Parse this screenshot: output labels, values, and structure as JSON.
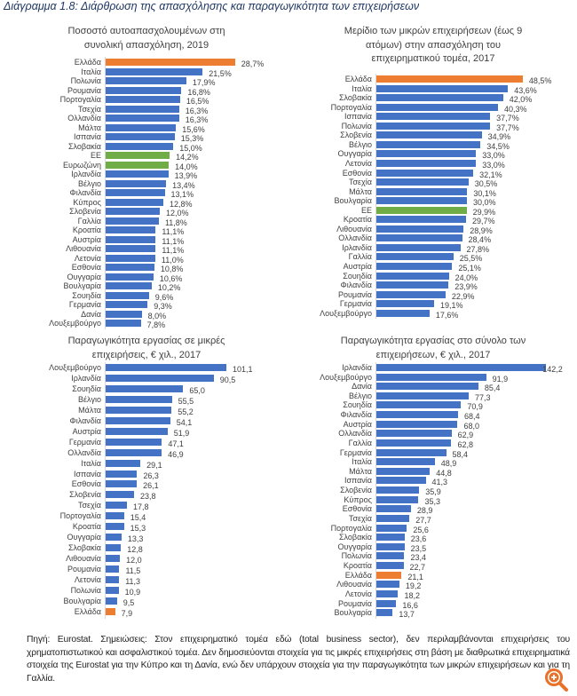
{
  "title": "Διάγραμμα 1.8: Διάρθρωση της απασχόλησης και παραγωγικότητα των επιχειρήσεων",
  "colors": {
    "default": "#4472C4",
    "greece": "#ED7D31",
    "eu": "#70AD47"
  },
  "chart_data": [
    {
      "type": "bar",
      "orientation": "horizontal",
      "title_lines": [
        "Ποσοστό αυτοαπασχολουμένων στη",
        "συνολική απασχόληση, 2019"
      ],
      "value_suffix": "%",
      "categories": [
        "Ελλάδα",
        "Ιταλία",
        "Πολωνία",
        "Ρουμανία",
        "Πορτογαλία",
        "Τσεχία",
        "Ολλανδία",
        "Μάλτα",
        "Ισπανία",
        "Σλοβακία",
        "ΕΕ",
        "Ευρωζώνη",
        "Ιρλανδία",
        "Βέλγιο",
        "Φιλανδία",
        "Κύπρος",
        "Σλοβενία",
        "Γαλλία",
        "Κροατία",
        "Αυστρία",
        "Λιθουανία",
        "Λετονία",
        "Εσθονία",
        "Ουγγαρία",
        "Βουλγαρία",
        "Σουηδία",
        "Γερμανία",
        "Δανία",
        "Λουξεμβούργο"
      ],
      "values": [
        28.7,
        21.5,
        17.9,
        16.8,
        16.5,
        16.3,
        16.3,
        15.6,
        15.3,
        15.0,
        14.2,
        14.0,
        13.9,
        13.4,
        13.1,
        12.8,
        12.0,
        11.8,
        11.1,
        11.1,
        11.1,
        11.0,
        10.8,
        10.6,
        10.2,
        9.6,
        9.3,
        8.0,
        7.8
      ],
      "labels": [
        "28,7%",
        "21,5%",
        "17,9%",
        "16,8%",
        "16,5%",
        "16,3%",
        "16,3%",
        "15,6%",
        "15,3%",
        "15,0%",
        "14,2%",
        "14,0%",
        "13,9%",
        "13,4%",
        "13,1%",
        "12,8%",
        "12,0%",
        "11,8%",
        "11,1%",
        "11,1%",
        "11,1%",
        "11,0%",
        "10,8%",
        "10,6%",
        "10,2%",
        "9,6%",
        "9,3%",
        "8,0%",
        "7,8%"
      ],
      "highlight": {
        "Ελλάδα": "greece",
        "ΕΕ": "eu",
        "Ευρωζώνη": "eu"
      }
    },
    {
      "type": "bar",
      "orientation": "horizontal",
      "title_lines": [
        "Μερίδιο των μικρών επιχειρήσεων (έως 9",
        "ατόμων) στην απασχόληση του",
        "επιχειρηματικού τομέα, 2017"
      ],
      "value_suffix": "%",
      "categories": [
        "Ελλάδα",
        "Ιταλία",
        "Σλοβακία",
        "Πορτογαλία",
        "Ισπανία",
        "Πολωνία",
        "Σλοβενία",
        "Βέλγιο",
        "Ουγγαρία",
        "Λετονία",
        "Εσθονία",
        "Τσεχία",
        "Μάλτα",
        "Βουλγαρία",
        "ΕΕ",
        "Κροατία",
        "Λιθουανία",
        "Ολλανδία",
        "Ιρλανδία",
        "Γαλλία",
        "Αυστρία",
        "Σουηδία",
        "Φιλανδία",
        "Ρουμανία",
        "Γερμανία",
        "Λουξεμβούργο"
      ],
      "values": [
        48.5,
        43.6,
        42.0,
        40.3,
        37.7,
        37.7,
        34.9,
        34.5,
        33.0,
        33.0,
        32.1,
        30.5,
        30.1,
        30.0,
        29.9,
        29.7,
        28.9,
        28.4,
        27.8,
        25.5,
        25.1,
        24.0,
        23.9,
        22.9,
        19.1,
        17.6
      ],
      "labels": [
        "48,5%",
        "43,6%",
        "42,0%",
        "40,3%",
        "37,7%",
        "37,7%",
        "34,9%",
        "34,5%",
        "33,0%",
        "33,0%",
        "32,1%",
        "30,5%",
        "30,1%",
        "30,0%",
        "29,9%",
        "29,7%",
        "28,9%",
        "28,4%",
        "27,8%",
        "25,5%",
        "25,1%",
        "24,0%",
        "23,9%",
        "22,9%",
        "19,1%",
        "17,6%"
      ],
      "highlight": {
        "Ελλάδα": "greece",
        "ΕΕ": "eu"
      }
    },
    {
      "type": "bar",
      "orientation": "horizontal",
      "title_lines": [
        "Παραγωγικότητα εργασίας σε μικρές",
        "επιχειρήσεις, € χιλ., 2017"
      ],
      "categories": [
        "Λουξεμβούργο",
        "Ιρλανδία",
        "Σουηδία",
        "Βέλγιο",
        "Μάλτα",
        "Φιλανδία",
        "Αυστρία",
        "Γερμανία",
        "Ολλανδία",
        "Ιταλία",
        "Ισπανία",
        "Εσθονία",
        "Σλοβενία",
        "Τσεχία",
        "Πορτογαλία",
        "Κροατία",
        "Ουγγαρία",
        "Σλοβακία",
        "Λιθουανία",
        "Ρουμανία",
        "Λετονία",
        "Πολωνία",
        "Βουλγαρία",
        "Ελλάδα"
      ],
      "values": [
        101.1,
        90.5,
        65.0,
        55.5,
        55.2,
        54.1,
        51.9,
        47.1,
        46.9,
        29.1,
        26.3,
        26.1,
        23.8,
        17.8,
        15.4,
        15.3,
        13.3,
        12.8,
        12.0,
        11.5,
        11.3,
        10.9,
        9.5,
        7.9
      ],
      "labels": [
        "101,1",
        "90,5",
        "65,0",
        "55,5",
        "55,2",
        "54,1",
        "51,9",
        "47,1",
        "46,9",
        "29,1",
        "26,3",
        "26,1",
        "23,8",
        "17,8",
        "15,4",
        "15,3",
        "13,3",
        "12,8",
        "12,0",
        "11,5",
        "11,3",
        "10,9",
        "9,5",
        "7,9"
      ],
      "highlight": {
        "Ελλάδα": "greece"
      }
    },
    {
      "type": "bar",
      "orientation": "horizontal",
      "title_lines": [
        "Παραγωγικότητα εργασίας στο σύνολο των",
        "επιχειρήσεων, € χιλ., 2017"
      ],
      "categories": [
        "Ιρλανδία",
        "Λουξεμβούργο",
        "Δανία",
        "Βέλγιο",
        "Σουηδία",
        "Φιλανδία",
        "Αυστρία",
        "Ολλανδία",
        "Γαλλία",
        "Γερμανία",
        "Ιταλία",
        "Μάλτα",
        "Ισπανία",
        "Σλοβενία",
        "Κύπρος",
        "Εσθονία",
        "Τσεχία",
        "Πορτογαλία",
        "Σλοβακία",
        "Ουγγαρία",
        "Πολωνία",
        "Κροατία",
        "Ελλάδα",
        "Λιθουανία",
        "Λετονία",
        "Ρουμανία",
        "Βουλγαρία"
      ],
      "values": [
        142.2,
        91.9,
        85.4,
        77.3,
        70.9,
        68.4,
        68.0,
        62.9,
        62.8,
        58.4,
        48.9,
        44.8,
        41.3,
        35.9,
        35.3,
        28.9,
        27.7,
        25.6,
        23.6,
        23.5,
        23.4,
        22.7,
        21.1,
        19.2,
        18.2,
        16.6,
        13.7
      ],
      "labels": [
        "142,2",
        "91,9",
        "85,4",
        "77,3",
        "70,9",
        "68,4",
        "68,0",
        "62,9",
        "62,8",
        "58,4",
        "48,9",
        "44,8",
        "41,3",
        "35,9",
        "35,3",
        "28,9",
        "27,7",
        "25,6",
        "23,6",
        "23,5",
        "23,4",
        "22,7",
        "21,1",
        "19,2",
        "18,2",
        "16,6",
        "13,7"
      ],
      "highlight": {
        "Ελλάδα": "greece"
      }
    }
  ],
  "footer": "Πηγή: Eurostat. Σημειώσεις: Στον επιχειρηματικό τομέα εδώ (total business sector), δεν περιλαμβάνονται επιχειρήσεις του χρηματοπιστωτικού και ασφαλιστικού τομέα. Δεν δημοσιεύονται στοιχεία για τις μικρές επιχειρήσεις στη βάση με διαθρωτικά επιχειρηματικά στοιχεία της Eurostat για την Κύπρο και τη Δανία, ενώ δεν υπάρχουν στοιχεία για την παραγωγικότητα των μικρών επιχειρήσεων και για τη Γαλλία.",
  "zoom_icon": "zoom-in-icon"
}
